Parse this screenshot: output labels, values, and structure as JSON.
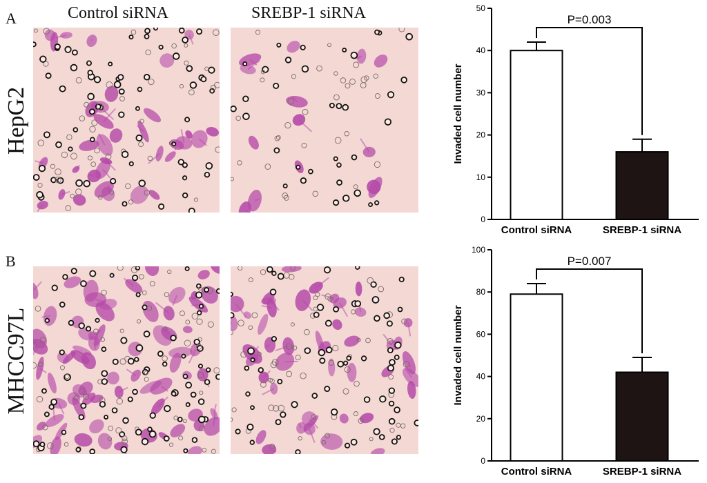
{
  "figure": {
    "column_titles": [
      "Control siRNA",
      "SREBP-1 siRNA"
    ],
    "panels": [
      {
        "letter": "A",
        "row_label": "HepG2"
      },
      {
        "letter": "B",
        "row_label": "MHCC97L"
      }
    ]
  },
  "colors": {
    "micro_background": "#f3d8d4",
    "cell_stain": "#b54aa8",
    "bar_control": "#ffffff",
    "bar_srebp": "#1e1414"
  },
  "chart_data": [
    {
      "type": "bar",
      "categories": [
        "Control siRNA",
        "SREBP-1 siRNA"
      ],
      "values": [
        40,
        16
      ],
      "errors": [
        2,
        3
      ],
      "ylabel": "Invaded cell number",
      "ylim": [
        0,
        50
      ],
      "yticks": [
        "0",
        "10",
        "20",
        "30",
        "40",
        "50"
      ],
      "annotation": "P=0.003"
    },
    {
      "type": "bar",
      "categories": [
        "Control siRNA",
        "SREBP-1 siRNA"
      ],
      "values": [
        79,
        42
      ],
      "errors": [
        5,
        7
      ],
      "ylabel": "Invaded cell number",
      "ylim": [
        0,
        100
      ],
      "yticks": [
        "0",
        "20",
        "40",
        "60",
        "80",
        "100"
      ],
      "annotation": "P=0.007"
    }
  ]
}
